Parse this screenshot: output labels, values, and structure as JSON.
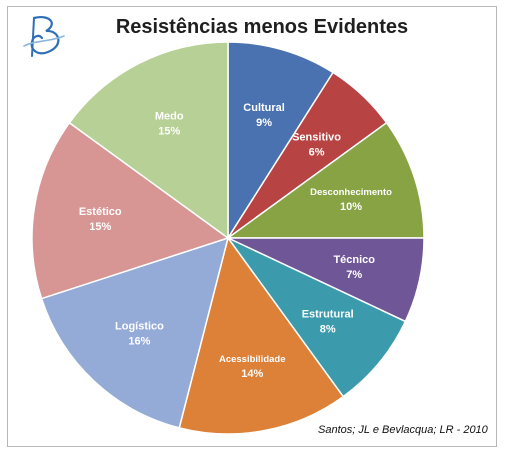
{
  "chart_data": {
    "type": "pie",
    "title": "Resistências menos Evidentes",
    "source": "Santos; JL e Bevlacqua; LR - 2010",
    "slices": [
      {
        "label": "Cultural",
        "value": 9,
        "display": "9%",
        "color": "#4a72b0"
      },
      {
        "label": "Sensitivo",
        "value": 6,
        "display": "6%",
        "color": "#b84343"
      },
      {
        "label": "Desconhecimento",
        "value": 10,
        "display": "10%",
        "color": "#87a344"
      },
      {
        "label": "Técnico",
        "value": 7,
        "display": "7%",
        "color": "#6f5696"
      },
      {
        "label": "Estrutural",
        "value": 8,
        "display": "8%",
        "color": "#3b9bad"
      },
      {
        "label": "Acessibilidade",
        "value": 14,
        "display": "14%",
        "color": "#dd8038"
      },
      {
        "label": "Logístico",
        "value": 16,
        "display": "16%",
        "color": "#94aad7"
      },
      {
        "label": "Estético",
        "value": 15,
        "display": "15%",
        "color": "#d79694"
      },
      {
        "label": "Medo",
        "value": 15,
        "display": "15%",
        "color": "#b7d095"
      }
    ]
  },
  "logo": {
    "icon": "logo-icon",
    "color": "#2f6fb8"
  }
}
